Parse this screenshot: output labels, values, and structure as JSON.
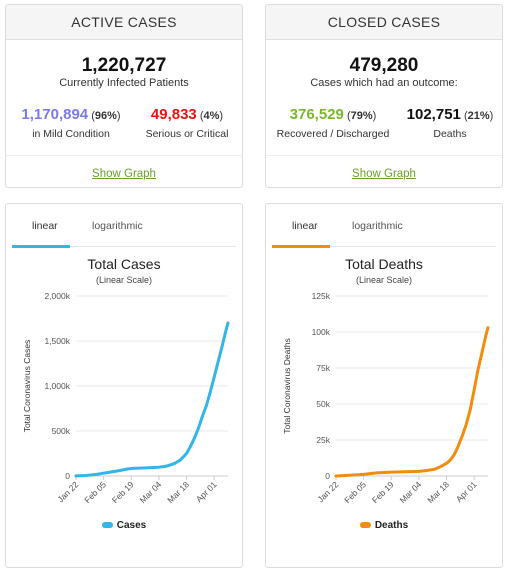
{
  "active": {
    "header": "ACTIVE CASES",
    "total": "1,220,727",
    "total_label": "Currently Infected Patients",
    "mild_value": "1,170,894",
    "mild_pct_open": " (",
    "mild_pct": "96%",
    "mild_pct_close": ")",
    "mild_label": "in Mild Condition",
    "serious_value": "49,833",
    "serious_pct": "4%",
    "serious_label": "Serious or Critical",
    "show_graph": "Show Graph"
  },
  "closed": {
    "header": "CLOSED CASES",
    "total": "479,280",
    "total_label": "Cases which had an outcome:",
    "recovered_value": "376,529",
    "recovered_pct": "79%",
    "recovered_label": "Recovered / Discharged",
    "deaths_value": "102,751",
    "deaths_pct": "21%",
    "deaths_label": "Deaths",
    "show_graph": "Show Graph"
  },
  "colors": {
    "mild": "#7b7be8",
    "serious": "#ee1111",
    "recovered": "#7ab82e",
    "cases_line": "#33b5e8",
    "deaths_line": "#f28c0f",
    "link": "#6a9f2a"
  },
  "tabs": {
    "linear": "linear",
    "logarithmic": "logarithmic"
  },
  "chart_data": [
    {
      "type": "line",
      "title": "Total Cases",
      "subtitle": "(Linear Scale)",
      "ylabel": "Total Coronavirus Cases",
      "xlabel": "",
      "yticks": [
        "0",
        "500k",
        "1,000k",
        "1,500k",
        "2,000k"
      ],
      "ylim": [
        0,
        2000000
      ],
      "xticks": [
        "Jan 22",
        "Feb 05",
        "Feb 19",
        "Mar 04",
        "Mar 18",
        "Apr 01"
      ],
      "x_days": [
        0,
        14,
        28,
        42,
        56,
        70
      ],
      "grid": true,
      "legend": "bottom-center",
      "series": [
        {
          "name": "Cases",
          "color": "#33b5e8",
          "x": [
            0,
            5,
            10,
            14,
            18,
            22,
            26,
            28,
            30,
            34,
            38,
            42,
            46,
            50,
            53,
            56,
            58,
            60,
            62,
            64,
            66,
            68,
            70,
            72,
            74,
            76,
            77
          ],
          "y": [
            580,
            6000,
            17000,
            31000,
            45000,
            60000,
            78000,
            83000,
            85000,
            89000,
            93000,
            98000,
            110000,
            140000,
            180000,
            250000,
            330000,
            420000,
            530000,
            660000,
            780000,
            930000,
            1100000,
            1270000,
            1440000,
            1620000,
            1700000
          ]
        }
      ]
    },
    {
      "type": "line",
      "title": "Total Deaths",
      "subtitle": "(Linear Scale)",
      "ylabel": "Total Coronavirus Deaths",
      "xlabel": "",
      "yticks": [
        "0",
        "25k",
        "50k",
        "75k",
        "100k",
        "125k"
      ],
      "ylim": [
        0,
        125000
      ],
      "xticks": [
        "Jan 22",
        "Feb 05",
        "Feb 19",
        "Mar 04",
        "Mar 18",
        "Apr 01"
      ],
      "x_days": [
        0,
        14,
        28,
        42,
        56,
        70
      ],
      "grid": true,
      "legend": "bottom-center",
      "series": [
        {
          "name": "Deaths",
          "color": "#f28c0f",
          "x": [
            0,
            7,
            14,
            21,
            28,
            35,
            42,
            46,
            50,
            53,
            56,
            58,
            60,
            62,
            64,
            66,
            68,
            70,
            72,
            74,
            76,
            77
          ],
          "y": [
            17,
            560,
            1110,
            2250,
            2710,
            2900,
            3200,
            3800,
            4700,
            6500,
            8800,
            11200,
            15000,
            21000,
            28000,
            36000,
            46000,
            60000,
            74000,
            86000,
            98000,
            103000
          ]
        }
      ]
    }
  ]
}
